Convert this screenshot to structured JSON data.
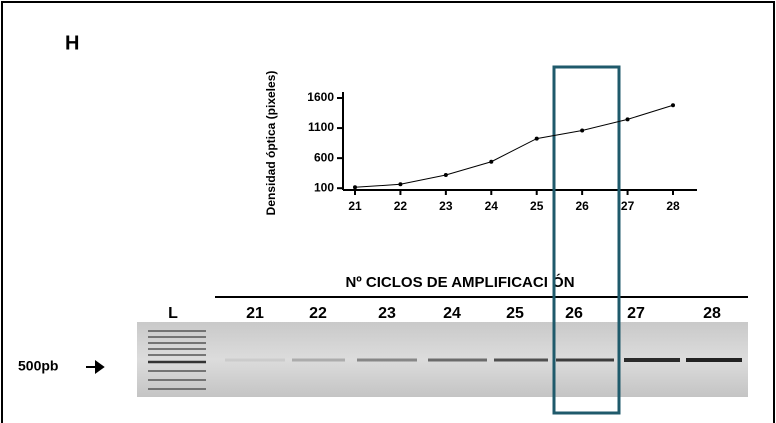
{
  "panel_label": "H",
  "chart_data": {
    "type": "line",
    "y_label": "Densidad óptica (pixeles)",
    "categories": [
      "21",
      "22",
      "23",
      "24",
      "25",
      "26",
      "27",
      "28"
    ],
    "values": [
      115,
      165,
      320,
      540,
      925,
      1060,
      1245,
      1480
    ],
    "color": "#000000",
    "ylim": [
      70,
      1700
    ],
    "yticks": [
      100,
      600,
      1100,
      1600
    ]
  },
  "gel": {
    "title": "Nº CICLOS DE AMPLIFICACI ÓN",
    "lanes": [
      "L",
      "21",
      "22",
      "23",
      "24",
      "25",
      "26",
      "27",
      "28"
    ],
    "marker": "500pb"
  }
}
